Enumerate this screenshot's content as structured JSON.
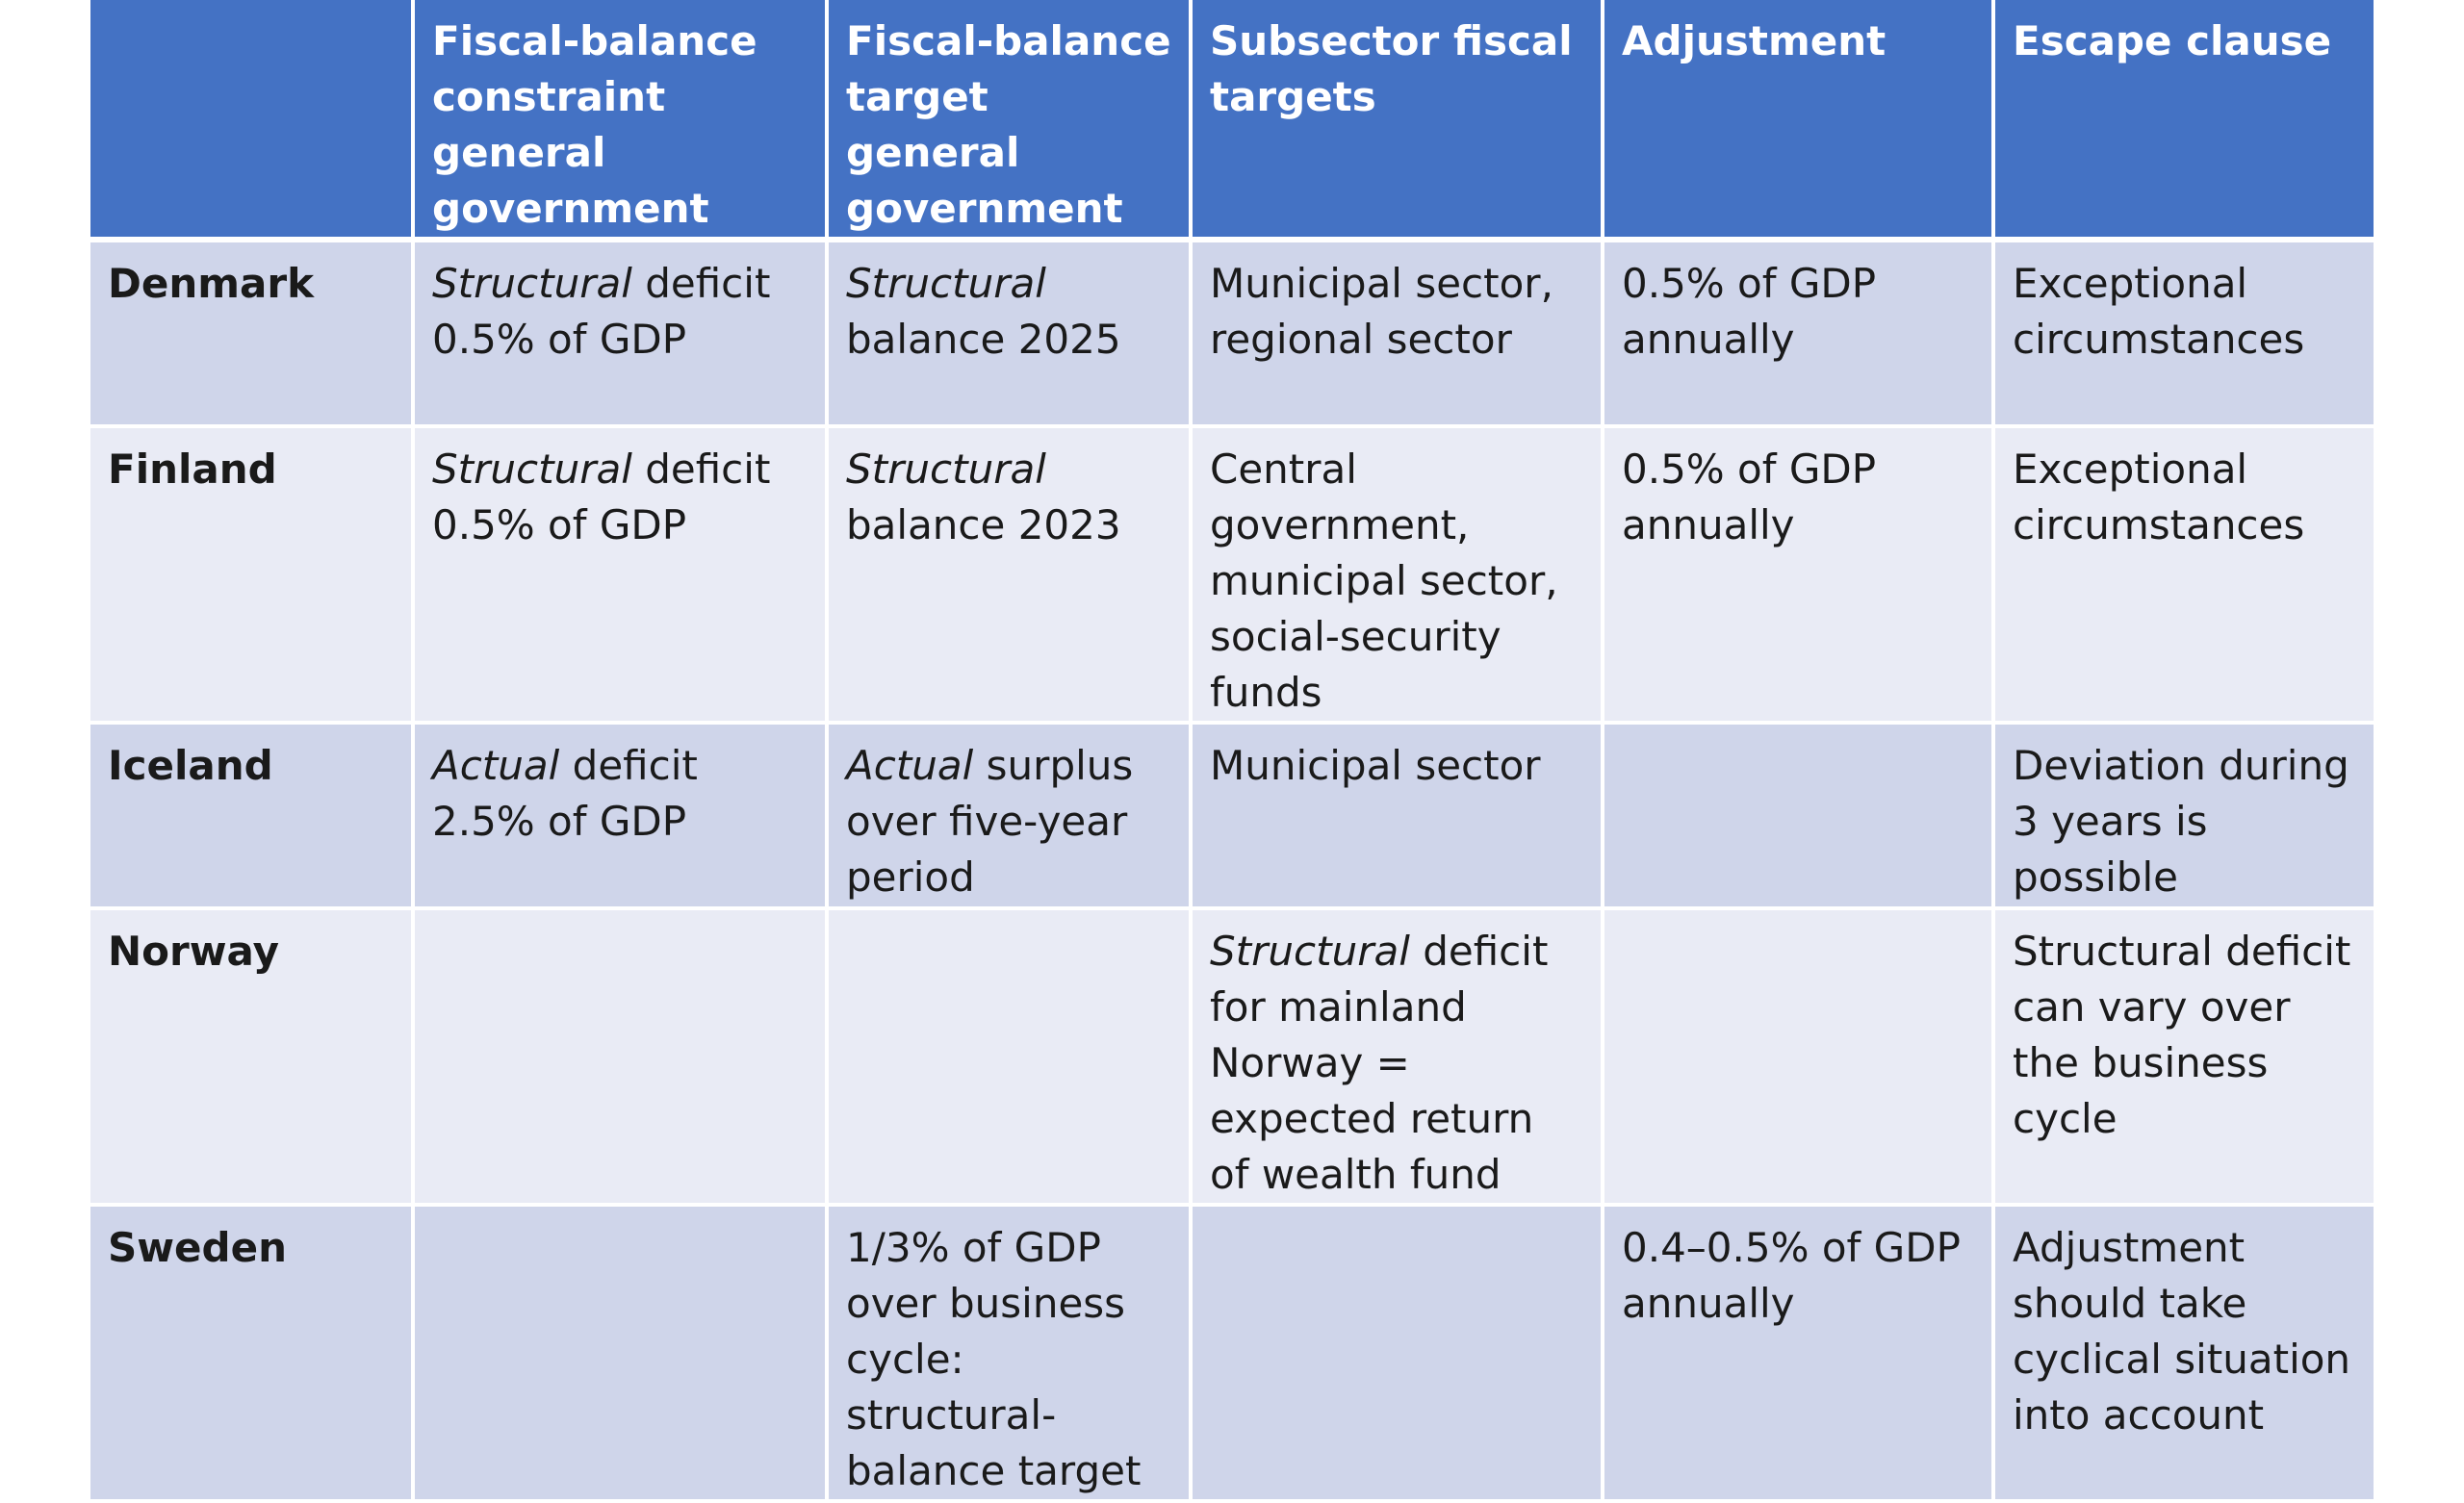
{
  "header": {
    "col0": "",
    "col1": "Fiscal-balance constraint general government",
    "col2": "Fiscal-balance target general government",
    "col3": "Subsector fiscal targets",
    "col4": "Adjustment",
    "col5": "Escape clause"
  },
  "rows": [
    {
      "country": "Denmark",
      "constraint_it": "Structural",
      "constraint_rest": " deficit 0.5% of GDP",
      "target_it": "Structural",
      "target_rest": " balance 2025",
      "subsector_it": "",
      "subsector_rest": "Municipal sector, regional sector",
      "adjustment": "0.5% of GDP annually",
      "escape": "Exceptional circumstances"
    },
    {
      "country": "Finland",
      "constraint_it": "Structural",
      "constraint_rest": " deficit 0.5% of GDP",
      "target_it": "Structural",
      "target_rest": " balance 2023",
      "subsector_it": "",
      "subsector_rest": "Central government, municipal sector, social-security funds",
      "adjustment": "0.5% of GDP annually",
      "escape": "Exceptional circumstances"
    },
    {
      "country": "Iceland",
      "constraint_it": "Actual",
      "constraint_rest": " deficit 2.5% of GDP",
      "target_it": "Actual",
      "target_rest": " surplus over five-year period",
      "subsector_it": "",
      "subsector_rest": "Municipal sector",
      "adjustment": "",
      "escape": "Deviation during 3 years is possible"
    },
    {
      "country": "Norway",
      "constraint_it": "",
      "constraint_rest": "",
      "target_it": "",
      "target_rest": "",
      "subsector_it": "Structural",
      "subsector_rest": " deficit for mainland Norway = expected return of wealth fund",
      "adjustment": "",
      "escape": "Structural deficit can vary over the business cycle"
    },
    {
      "country": "Sweden",
      "constraint_it": "",
      "constraint_rest": "",
      "target_it": "",
      "target_rest": "1/3% of GDP over business cycle: structural-balance target",
      "subsector_it": "",
      "subsector_rest": "",
      "adjustment": "0.4–0.5% of GDP annually",
      "escape": "Adjustment should take cyclical situation into account"
    }
  ],
  "colors": {
    "header_bg": "#4472c4",
    "header_text": "#ffffff",
    "band_dark": "#cfd5ea",
    "band_light": "#e9ebf5",
    "cell_text": "#1a1a1a"
  }
}
